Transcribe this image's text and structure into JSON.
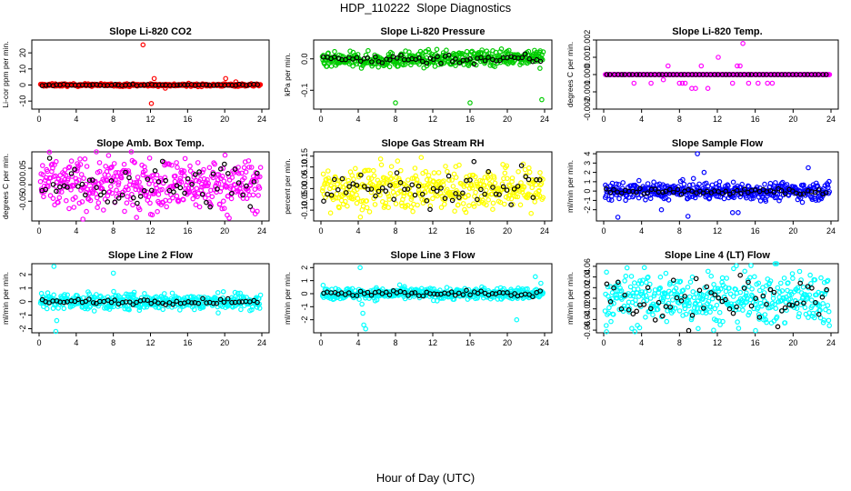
{
  "title": "HDP_110222  Slope Diagnostics",
  "xlabel": "Hour of Day (UTC)",
  "colors": {
    "black": "#000000"
  },
  "chart_data": [
    {
      "type": "scatter",
      "title": "Slope Li-820 CO2",
      "ylabel": "Li-cor ppm per min.",
      "color": "#ff0000",
      "xlim": [
        0,
        24
      ],
      "ylim": [
        -15,
        28
      ],
      "yticks": [
        -10,
        0,
        10,
        20
      ],
      "xticks": [
        0,
        4,
        8,
        12,
        16,
        20,
        24
      ],
      "spread": 0.4,
      "black_spread": 0.2,
      "outliers": [
        [
          11.2,
          25
        ],
        [
          12.1,
          -11.5
        ],
        [
          12.4,
          4
        ],
        [
          13.6,
          -2
        ],
        [
          20.1,
          4
        ],
        [
          21.2,
          2
        ]
      ]
    },
    {
      "type": "scatter",
      "title": "Slope Li-820 Pressure",
      "ylabel": "kPa per min.",
      "color": "#00cc00",
      "xlim": [
        0,
        24
      ],
      "ylim": [
        -0.16,
        0.06
      ],
      "yticks": [
        -0.1,
        0.0
      ],
      "xticks": [
        0,
        4,
        8,
        12,
        16,
        20,
        24
      ],
      "spread": 0.012,
      "black_spread": 0.008,
      "trend": 0.0006,
      "outliers": [
        [
          8,
          -0.14
        ],
        [
          16,
          -0.14
        ],
        [
          23.7,
          -0.13
        ],
        [
          23.5,
          -0.03
        ]
      ]
    },
    {
      "type": "scatter",
      "title": "Slope Li-820 Temp.",
      "ylabel": "degrees C per min.",
      "color": "#ff00ff",
      "xlim": [
        0,
        24
      ],
      "ylim": [
        -0.002,
        0.002
      ],
      "yticks": [
        -0.002,
        -0.001,
        0.0,
        0.001,
        0.002
      ],
      "xticks": [
        0,
        4,
        8,
        12,
        16,
        20,
        24
      ],
      "spread": 0,
      "black_spread": 0,
      "outliers": [
        [
          3.2,
          -0.0005
        ],
        [
          5,
          -0.0005
        ],
        [
          6.3,
          -0.0003
        ],
        [
          6.8,
          0.0005
        ],
        [
          8,
          -0.0005
        ],
        [
          8.3,
          -0.0005
        ],
        [
          8.6,
          -0.0005
        ],
        [
          9.3,
          -0.0008
        ],
        [
          9.7,
          -0.0008
        ],
        [
          10.3,
          0.0005
        ],
        [
          11,
          -0.0008
        ],
        [
          12.1,
          0.001
        ],
        [
          13.6,
          -0.0005
        ],
        [
          14.1,
          0.0005
        ],
        [
          14.4,
          0.0005
        ],
        [
          14.7,
          0.0018
        ],
        [
          15.3,
          -0.0005
        ],
        [
          16.3,
          -0.0005
        ],
        [
          17.3,
          -0.0005
        ],
        [
          17.8,
          -0.0005
        ]
      ]
    },
    {
      "type": "scatter",
      "title": "Slope Amb. Box Temp.",
      "ylabel": "degrees C per min.",
      "color": "#ff00ff",
      "xlim": [
        0,
        24
      ],
      "ylim": [
        -0.11,
        0.1
      ],
      "yticks": [
        -0.05,
        0.0,
        0.05
      ],
      "xticks": [
        0,
        4,
        8,
        12,
        16,
        20,
        24
      ],
      "spread": 0.04,
      "black_spread": 0.035,
      "outliers": []
    },
    {
      "type": "scatter",
      "title": "Slope Gas Stream RH",
      "ylabel": "percent per min.",
      "color": "#ffff00",
      "xlim": [
        0,
        24
      ],
      "ylim": [
        -0.15,
        0.17
      ],
      "yticks": [
        -0.1,
        -0.05,
        0.0,
        0.05,
        0.1,
        0.15
      ],
      "xticks": [
        0,
        4,
        8,
        12,
        16,
        20,
        24
      ],
      "spread": 0.05,
      "black_spread": 0.05,
      "outliers": []
    },
    {
      "type": "scatter",
      "title": "Slope Sample Flow",
      "ylabel": "ml/min per min.",
      "color": "#0000ff",
      "xlim": [
        0,
        24
      ],
      "ylim": [
        -3.2,
        4.2
      ],
      "yticks": [
        -2,
        -1,
        0,
        1,
        2,
        3,
        4
      ],
      "xticks": [
        0,
        4,
        8,
        12,
        16,
        20,
        24
      ],
      "spread": 0.45,
      "black_spread": 0.2,
      "outliers": [
        [
          1.5,
          -2.8
        ],
        [
          6.1,
          -2
        ],
        [
          8.9,
          -2.7
        ],
        [
          9.9,
          4
        ],
        [
          10.6,
          2
        ],
        [
          13.6,
          -2.3
        ],
        [
          14.2,
          -2.3
        ],
        [
          21.6,
          2.5
        ]
      ]
    },
    {
      "type": "scatter",
      "title": "Slope Line 2 Flow",
      "ylabel": "ml/min per min.",
      "color": "#00ffff",
      "xlim": [
        0,
        24
      ],
      "ylim": [
        -2.3,
        2.8
      ],
      "yticks": [
        -2,
        -1,
        0,
        1,
        2
      ],
      "xticks": [
        0,
        4,
        8,
        12,
        16,
        20,
        24
      ],
      "spread": 0.3,
      "black_spread": 0.1,
      "outliers": [
        [
          1.6,
          2.6
        ],
        [
          1.8,
          -2.2
        ],
        [
          8,
          2.1
        ],
        [
          1.9,
          -1.4
        ]
      ]
    },
    {
      "type": "scatter",
      "title": "Slope Line 3 Flow",
      "ylabel": "ml/min per min.",
      "color": "#00ffff",
      "xlim": [
        0,
        24
      ],
      "ylim": [
        -3.0,
        2.3
      ],
      "yticks": [
        -2,
        -1,
        0,
        1,
        2
      ],
      "xticks": [
        0,
        4,
        8,
        12,
        16,
        20,
        24
      ],
      "spread": 0.22,
      "black_spread": 0.12,
      "outliers": [
        [
          4.2,
          2.0
        ],
        [
          4.5,
          -1.5
        ],
        [
          4.6,
          -2.4
        ],
        [
          4.8,
          -2.7
        ],
        [
          4.4,
          -0.8
        ],
        [
          21,
          -2.0
        ],
        [
          23,
          1.3
        ],
        [
          23.6,
          0.8
        ]
      ]
    },
    {
      "type": "scatter",
      "title": "Slope Line 4 (LT) Flow",
      "ylabel": "ml/min per min.",
      "color": "#00ffff",
      "xlim": [
        0,
        24
      ],
      "ylim": [
        -0.065,
        0.065
      ],
      "yticks": [
        -0.06,
        -0.04,
        -0.02,
        0.0,
        0.02,
        0.04,
        0.06
      ],
      "xticks": [
        0,
        4,
        8,
        12,
        16,
        20,
        24
      ],
      "spread": 0.025,
      "black_spread": 0.025,
      "outliers": [
        [
          0.3,
          -0.063
        ]
      ]
    }
  ]
}
